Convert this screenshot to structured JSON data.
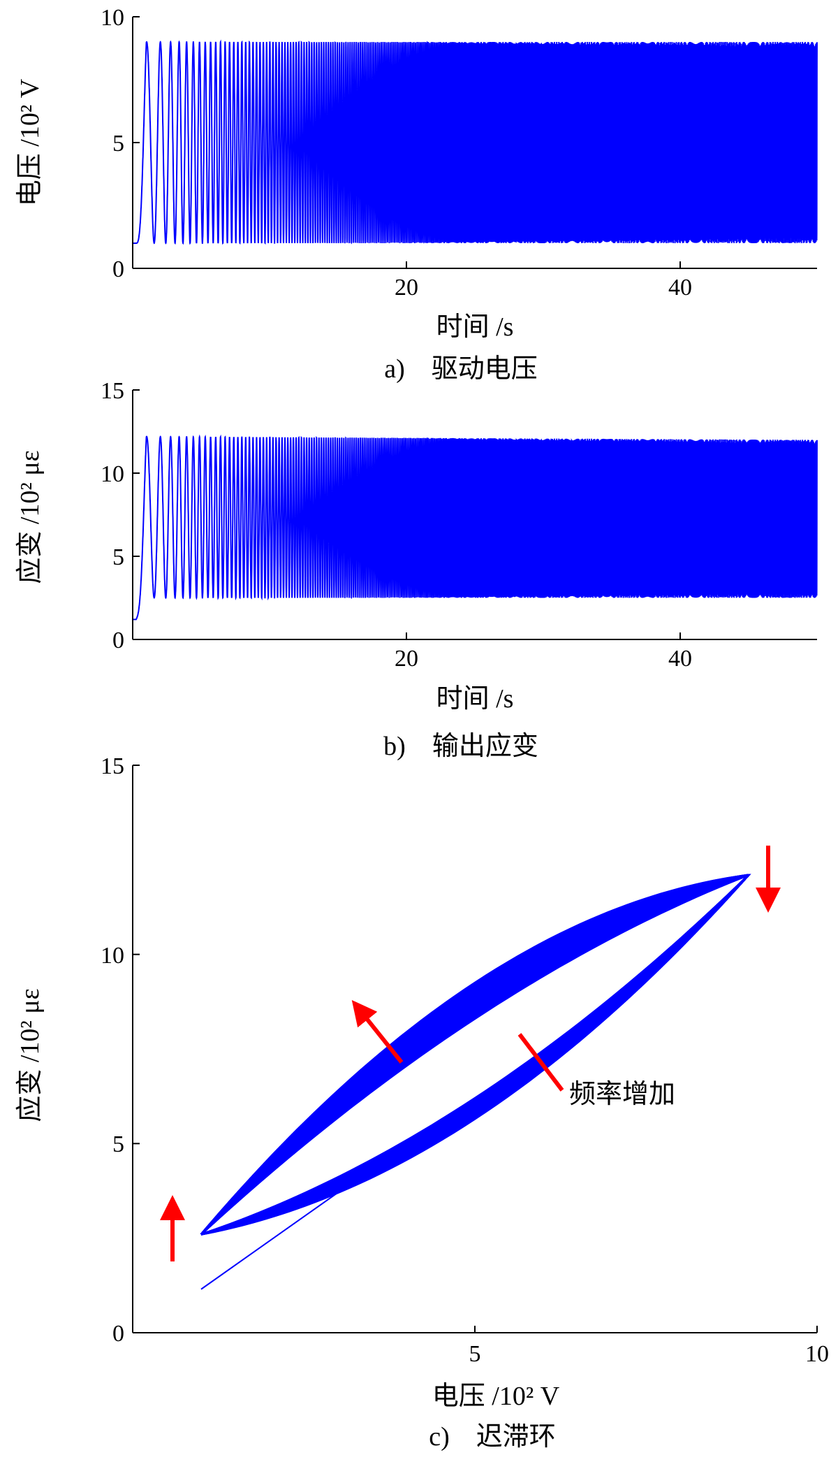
{
  "colors": {
    "series": "#0000ff",
    "arrow": "#ff0000",
    "axis": "#000000"
  },
  "chart_data": [
    {
      "type": "line",
      "xlabel": "时间 /s",
      "ylabel": "电压 /10² V",
      "caption": "a)　驱动电压",
      "xlim": [
        0,
        50
      ],
      "ylim": [
        0,
        10
      ],
      "xticks": [
        20,
        40
      ],
      "yticks": [
        0,
        5,
        10
      ],
      "signal": {
        "kind": "chirp",
        "baseline": 1,
        "min": 1,
        "max": 9,
        "f_start_hz": 0.5,
        "f_end_hz": 20
      }
    },
    {
      "type": "line",
      "xlabel": "时间 /s",
      "ylabel": "应变 /10² με",
      "caption": "b)　输出应变",
      "xlim": [
        0,
        50
      ],
      "ylim": [
        0,
        15
      ],
      "xticks": [
        20,
        40
      ],
      "yticks": [
        0,
        5,
        10,
        15
      ],
      "signal": {
        "kind": "chirp",
        "baseline": 1.2,
        "min": 2.5,
        "max": 12.2,
        "max_end": 12,
        "f_start_hz": 0.5,
        "f_end_hz": 20
      }
    },
    {
      "type": "scatter",
      "xlabel": "电压 /10² V",
      "ylabel": "应变 /10² με",
      "caption": "c)　迟滞环",
      "xlim": [
        0,
        10
      ],
      "ylim": [
        0,
        15
      ],
      "xticks": [
        5,
        10
      ],
      "yticks": [
        0,
        5,
        10,
        15
      ],
      "initial_branch": [
        [
          1,
          1.15
        ],
        [
          3.7,
          4.6
        ]
      ],
      "loop_corners": {
        "low": [
          1,
          2.6
        ],
        "high": [
          9,
          12.1
        ]
      },
      "annotation": "频率增加"
    }
  ]
}
